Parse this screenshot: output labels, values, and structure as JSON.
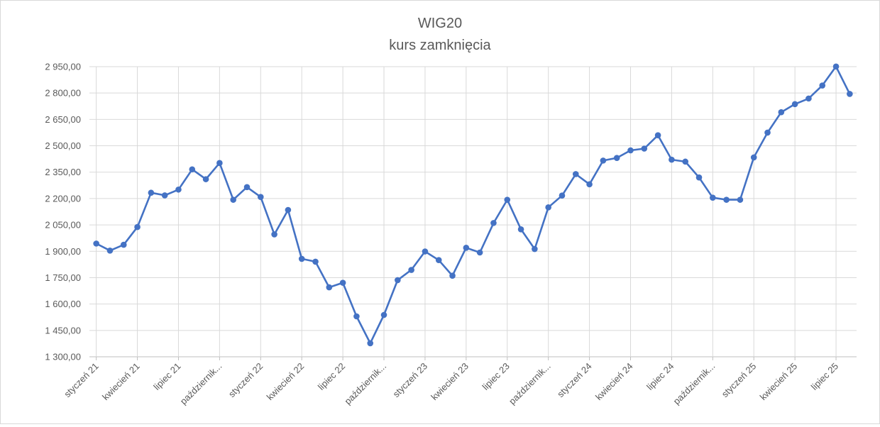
{
  "chart_data": {
    "type": "line",
    "title": "WIG20",
    "subtitle": "kurs zamknięcia",
    "xlabel": "",
    "ylabel": "",
    "ylim": [
      1300,
      2950
    ],
    "yticks": [
      "1 300,00",
      "1 450,00",
      "1 600,00",
      "1 750,00",
      "1 900,00",
      "2 050,00",
      "2 200,00",
      "2 350,00",
      "2 500,00",
      "2 650,00",
      "2 800,00",
      "2 950,00"
    ],
    "yvalues": [
      1300,
      1450,
      1600,
      1750,
      1900,
      2050,
      2200,
      2350,
      2500,
      2650,
      2800,
      2950
    ],
    "xtick_labels": [
      {
        "index": 0,
        "label": "styczeń 21"
      },
      {
        "index": 3,
        "label": "kwiecień 21"
      },
      {
        "index": 6,
        "label": "lipiec 21"
      },
      {
        "index": 9,
        "label": "październik..."
      },
      {
        "index": 12,
        "label": "styczeń 22"
      },
      {
        "index": 15,
        "label": "kwiecień 22"
      },
      {
        "index": 18,
        "label": "lipiec 22"
      },
      {
        "index": 21,
        "label": "październik..."
      },
      {
        "index": 24,
        "label": "styczeń 23"
      },
      {
        "index": 27,
        "label": "kwiecień 23"
      },
      {
        "index": 30,
        "label": "lipiec 23"
      },
      {
        "index": 33,
        "label": "październik..."
      },
      {
        "index": 36,
        "label": "styczeń 24"
      },
      {
        "index": 39,
        "label": "kwiecień 24"
      },
      {
        "index": 42,
        "label": "lipiec 24"
      },
      {
        "index": 45,
        "label": "październik..."
      },
      {
        "index": 48,
        "label": "styczeń 25"
      },
      {
        "index": 51,
        "label": "kwiecień 25"
      },
      {
        "index": 54,
        "label": "lipiec 25"
      }
    ],
    "series": [
      {
        "color": "#4472c4",
        "values": [
          1944,
          1904,
          1937,
          2038,
          2233,
          2218,
          2251,
          2366,
          2310,
          2402,
          2193,
          2265,
          2209,
          1996,
          2135,
          1857,
          1841,
          1695,
          1721,
          1530,
          1377,
          1538,
          1736,
          1794,
          1899,
          1850,
          1761,
          1920,
          1893,
          2061,
          2193,
          2025,
          1913,
          2150,
          2217,
          2339,
          2281,
          2416,
          2431,
          2474,
          2484,
          2560,
          2421,
          2410,
          2320,
          2205,
          2193,
          2193,
          2434,
          2575,
          2691,
          2737,
          2769,
          2843,
          2951,
          2795
        ]
      }
    ],
    "grid": true,
    "legend": "none"
  }
}
